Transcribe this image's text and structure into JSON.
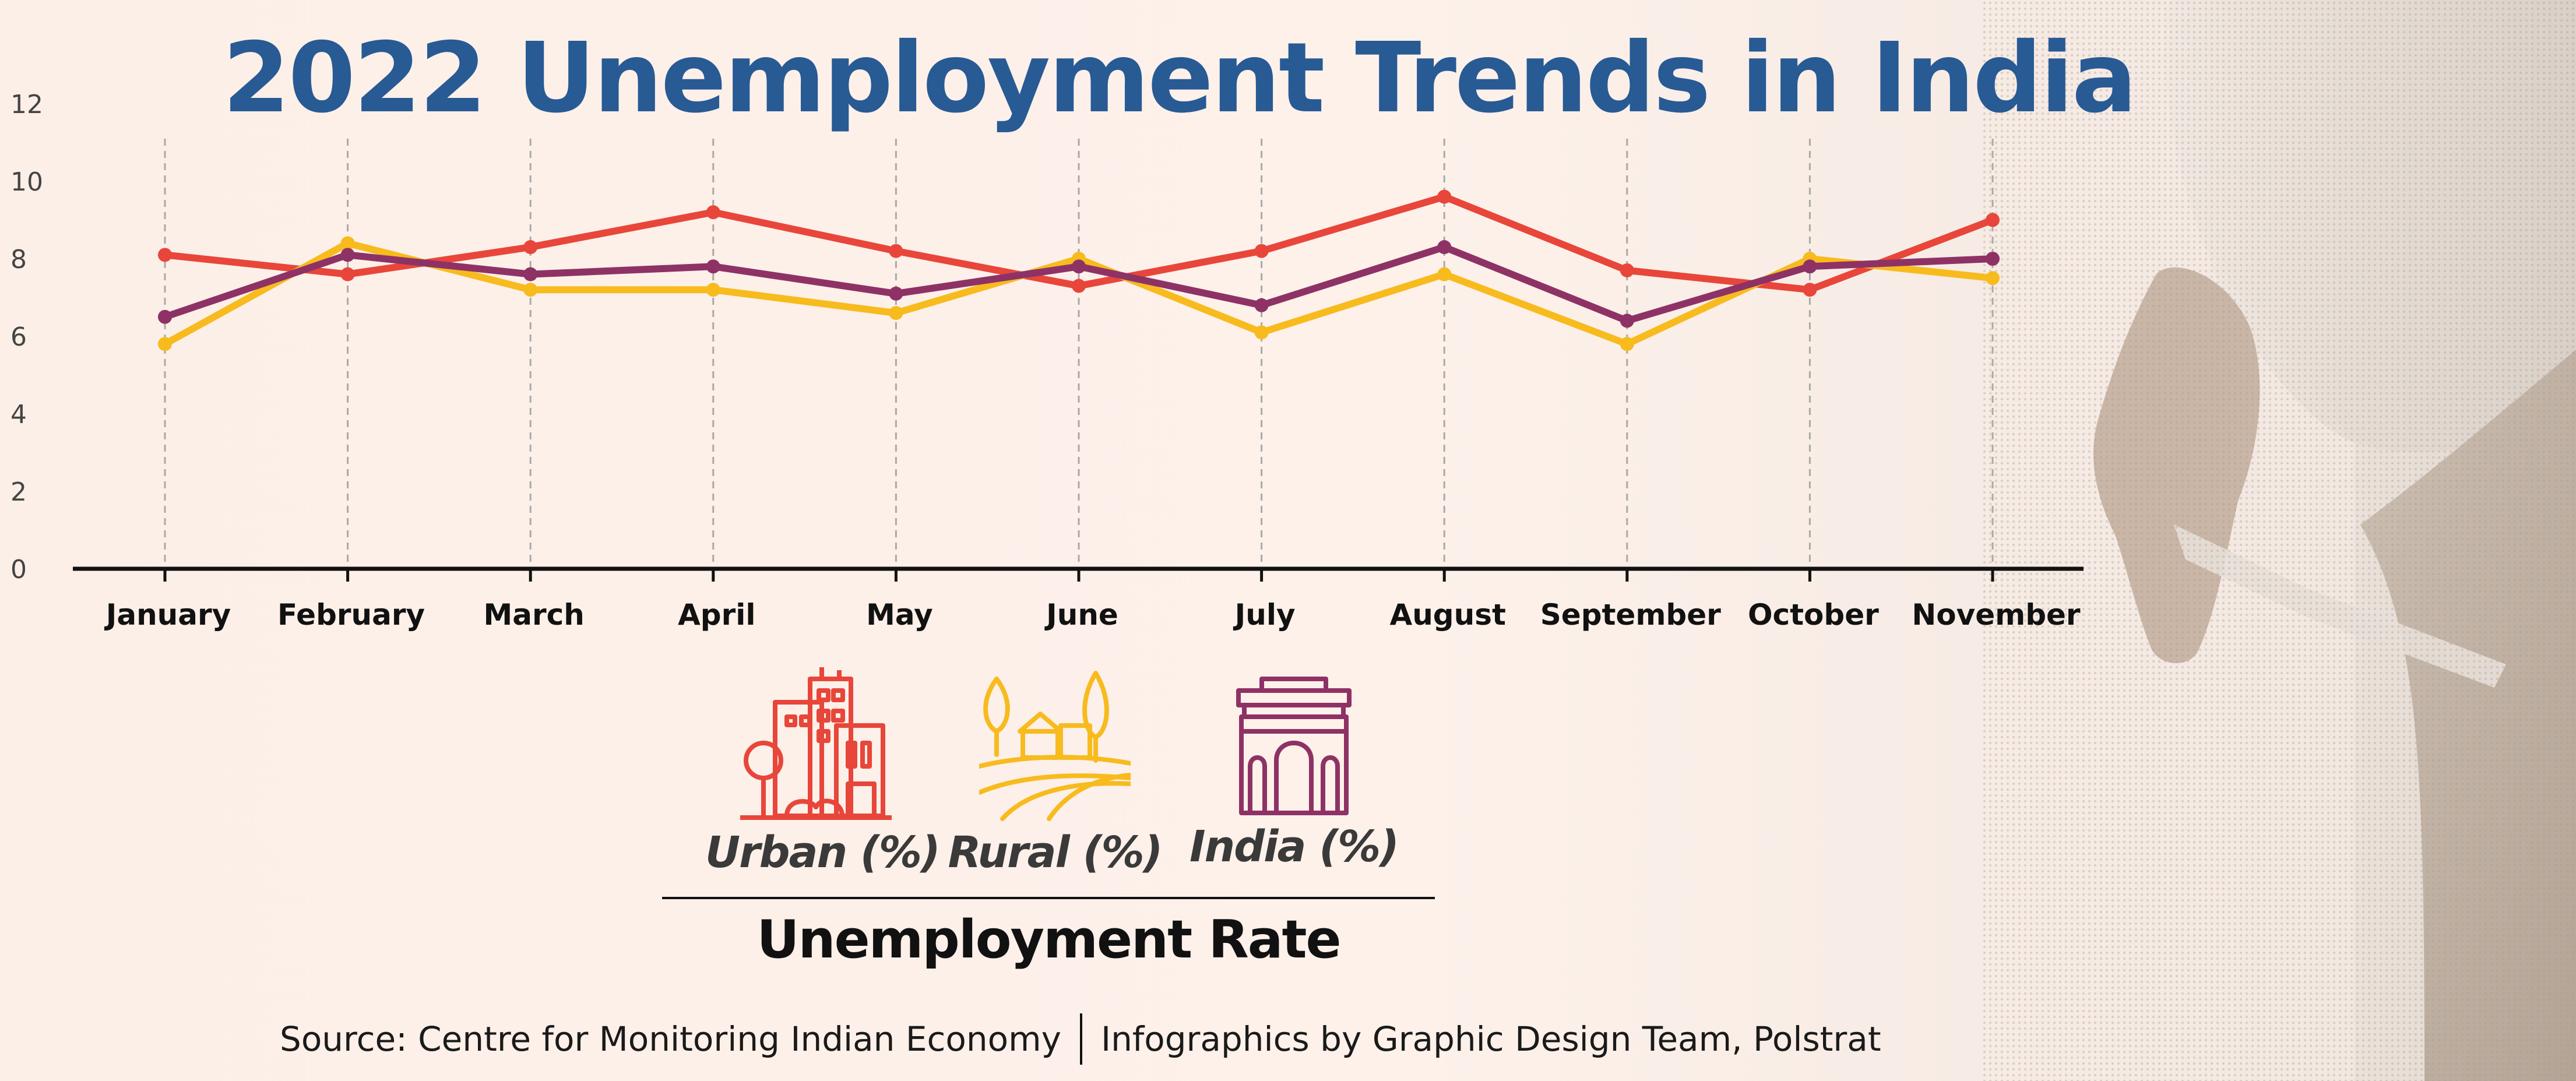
{
  "chart_data": {
    "type": "line",
    "title": "2022 Unemployment Trends in India",
    "xlabel": "",
    "ylabel": "Unemployment Rate",
    "ylim": [
      0,
      12
    ],
    "yticks": [
      "0",
      "2",
      "4",
      "6",
      "8",
      "10",
      "12"
    ],
    "categories": [
      "January",
      "February",
      "March",
      "April",
      "May",
      "June",
      "July",
      "August",
      "September",
      "October",
      "November"
    ],
    "series": [
      {
        "name": "Urban (%)",
        "color": "#e8463a",
        "values": [
          8.1,
          7.6,
          8.3,
          9.2,
          8.2,
          7.3,
          8.2,
          9.6,
          7.7,
          7.2,
          9.0
        ]
      },
      {
        "name": "Rural (%)",
        "color": "#f7bb1e",
        "values": [
          5.8,
          8.4,
          7.2,
          7.2,
          6.6,
          8.0,
          6.1,
          7.6,
          5.8,
          8.0,
          7.5
        ]
      },
      {
        "name": "India (%)",
        "color": "#8e3266",
        "values": [
          6.5,
          8.1,
          7.6,
          7.8,
          7.1,
          7.8,
          6.8,
          8.3,
          6.4,
          7.8,
          8.0
        ]
      }
    ]
  },
  "legend": {
    "items": [
      {
        "label": "Urban (%)",
        "icon": "city-buildings-icon",
        "color": "#e8463a"
      },
      {
        "label": "Rural (%)",
        "icon": "rural-farm-icon",
        "color": "#f7bb1e"
      },
      {
        "label": "India (%)",
        "icon": "india-gate-icon",
        "color": "#8e3266"
      }
    ],
    "caption": "Unemployment Rate"
  },
  "footer": {
    "source": "Source: Centre for Monitoring Indian Economy",
    "credit": "Infographics by Graphic Design Team, Polstrat"
  },
  "colors": {
    "title": "#285a94",
    "axis": "#111111",
    "grid": "#aaaaaa"
  }
}
